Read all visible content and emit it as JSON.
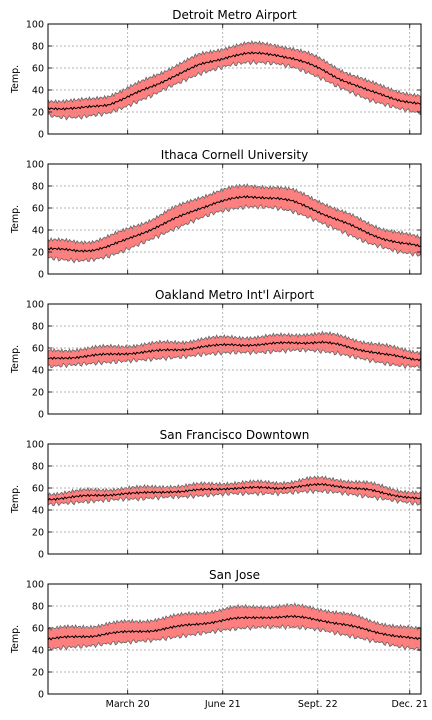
{
  "chart_data": [
    {
      "type": "area",
      "title": "Detroit Metro Airport",
      "ylabel": "Temp.",
      "ylim": [
        0,
        100
      ],
      "yticks": [
        0,
        20,
        40,
        60,
        80,
        100
      ],
      "x": [
        1,
        15,
        30,
        45,
        60,
        75,
        90,
        105,
        120,
        135,
        150,
        165,
        180,
        195,
        210,
        225,
        240,
        255,
        270,
        285,
        300,
        315,
        330,
        345,
        360,
        366
      ],
      "series": [
        {
          "role": "mean",
          "values": [
            24,
            23,
            23,
            25,
            27,
            32,
            38,
            44,
            51,
            57,
            63,
            67,
            71,
            73,
            73,
            72,
            69,
            64,
            58,
            51,
            45,
            39,
            35,
            31,
            28,
            27
          ]
        },
        {
          "role": "band-low",
          "values": [
            17,
            15,
            15,
            17,
            19,
            24,
            30,
            36,
            43,
            49,
            55,
            59,
            63,
            65,
            65,
            64,
            61,
            56,
            50,
            43,
            37,
            31,
            27,
            23,
            20,
            19
          ]
        },
        {
          "role": "band-high",
          "values": [
            31,
            30,
            30,
            32,
            35,
            40,
            46,
            53,
            60,
            66,
            72,
            76,
            80,
            82,
            82,
            81,
            78,
            73,
            67,
            60,
            53,
            47,
            43,
            39,
            35,
            34
          ]
        }
      ]
    },
    {
      "type": "area",
      "title": "Ithaca Cornell University",
      "ylabel": "Temp.",
      "ylim": [
        0,
        100
      ],
      "yticks": [
        0,
        20,
        40,
        60,
        80,
        100
      ],
      "x": [
        1,
        15,
        30,
        45,
        60,
        75,
        90,
        105,
        120,
        135,
        150,
        165,
        180,
        195,
        210,
        225,
        240,
        255,
        270,
        285,
        300,
        315,
        330,
        345,
        360,
        366
      ],
      "series": [
        {
          "role": "mean",
          "values": [
            23,
            22,
            21,
            22,
            25,
            30,
            36,
            42,
            48,
            54,
            60,
            65,
            68,
            70,
            70,
            69,
            66,
            61,
            55,
            49,
            43,
            37,
            32,
            28,
            26,
            25
          ]
        },
        {
          "role": "band-low",
          "values": [
            15,
            13,
            12,
            13,
            16,
            21,
            27,
            33,
            39,
            45,
            51,
            56,
            59,
            61,
            61,
            60,
            57,
            52,
            46,
            40,
            34,
            28,
            24,
            20,
            18,
            17
          ]
        },
        {
          "role": "band-high",
          "values": [
            31,
            30,
            29,
            30,
            34,
            39,
            45,
            51,
            58,
            64,
            70,
            75,
            78,
            80,
            80,
            79,
            76,
            71,
            65,
            58,
            52,
            46,
            41,
            37,
            34,
            33
          ]
        }
      ]
    },
    {
      "type": "area",
      "title": "Oakland Metro Int'l Airport",
      "ylabel": "Temp.",
      "ylim": [
        0,
        100
      ],
      "yticks": [
        0,
        20,
        40,
        60,
        80,
        100
      ],
      "x": [
        1,
        15,
        30,
        45,
        60,
        75,
        90,
        105,
        120,
        135,
        150,
        165,
        180,
        195,
        210,
        225,
        240,
        255,
        270,
        285,
        300,
        315,
        330,
        345,
        360,
        366
      ],
      "series": [
        {
          "role": "mean",
          "values": [
            50,
            51,
            52,
            53,
            54,
            55,
            56,
            57,
            58,
            59,
            61,
            62,
            63,
            63,
            63,
            64,
            65,
            65,
            65,
            63,
            60,
            57,
            54,
            52,
            50,
            50
          ]
        },
        {
          "role": "band-low",
          "values": [
            43,
            44,
            45,
            46,
            47,
            48,
            49,
            50,
            51,
            52,
            54,
            55,
            56,
            56,
            56,
            57,
            58,
            58,
            57,
            55,
            52,
            49,
            46,
            44,
            43,
            43
          ]
        },
        {
          "role": "band-high",
          "values": [
            57,
            58,
            59,
            60,
            61,
            62,
            63,
            64,
            65,
            66,
            68,
            69,
            70,
            70,
            70,
            71,
            72,
            73,
            73,
            71,
            68,
            65,
            62,
            59,
            57,
            57
          ]
        }
      ]
    },
    {
      "type": "area",
      "title": "San Francisco Downtown",
      "ylabel": "Temp.",
      "ylim": [
        0,
        100
      ],
      "yticks": [
        0,
        20,
        40,
        60,
        80,
        100
      ],
      "x": [
        1,
        15,
        30,
        45,
        60,
        75,
        90,
        105,
        120,
        135,
        150,
        165,
        180,
        195,
        210,
        225,
        240,
        255,
        270,
        285,
        300,
        315,
        330,
        345,
        360,
        366
      ],
      "series": [
        {
          "role": "mean",
          "values": [
            50,
            51,
            52,
            53,
            54,
            55,
            55,
            56,
            57,
            57,
            58,
            59,
            60,
            60,
            60,
            60,
            61,
            62,
            63,
            62,
            60,
            58,
            55,
            53,
            51,
            50
          ]
        },
        {
          "role": "band-low",
          "values": [
            45,
            46,
            47,
            48,
            49,
            50,
            50,
            51,
            52,
            52,
            53,
            54,
            55,
            55,
            55,
            55,
            56,
            57,
            57,
            56,
            54,
            52,
            50,
            48,
            46,
            45
          ]
        },
        {
          "role": "band-high",
          "values": [
            55,
            56,
            57,
            58,
            59,
            60,
            60,
            61,
            62,
            62,
            63,
            64,
            65,
            65,
            65,
            65,
            66,
            68,
            69,
            68,
            66,
            64,
            61,
            58,
            56,
            55
          ]
        }
      ]
    },
    {
      "type": "area",
      "title": "San Jose",
      "ylabel": "Temp.",
      "ylim": [
        0,
        100
      ],
      "yticks": [
        0,
        20,
        40,
        60,
        80,
        100
      ],
      "x": [
        1,
        15,
        30,
        45,
        60,
        75,
        90,
        105,
        120,
        135,
        150,
        165,
        180,
        195,
        210,
        225,
        240,
        255,
        270,
        285,
        300,
        315,
        330,
        345,
        360,
        366
      ],
      "series": [
        {
          "role": "mean",
          "values": [
            50,
            51,
            52,
            53,
            55,
            56,
            57,
            58,
            60,
            62,
            64,
            66,
            68,
            69,
            70,
            70,
            70,
            69,
            67,
            64,
            61,
            58,
            55,
            52,
            50,
            50
          ]
        },
        {
          "role": "band-low",
          "values": [
            41,
            42,
            43,
            44,
            46,
            47,
            48,
            49,
            51,
            53,
            55,
            57,
            59,
            60,
            61,
            61,
            61,
            60,
            58,
            55,
            52,
            49,
            46,
            43,
            41,
            41
          ]
        },
        {
          "role": "band-high",
          "values": [
            59,
            60,
            61,
            62,
            64,
            65,
            66,
            68,
            70,
            72,
            74,
            76,
            78,
            79,
            80,
            80,
            80,
            79,
            77,
            74,
            71,
            67,
            64,
            61,
            59,
            59
          ]
        }
      ]
    }
  ],
  "x_axis": {
    "range": [
      1,
      366
    ],
    "ticks": [
      {
        "day": 79,
        "label": "March 20"
      },
      {
        "day": 172,
        "label": "June 21"
      },
      {
        "day": 265,
        "label": "Sept. 22"
      },
      {
        "day": 355,
        "label": "Dec. 21"
      }
    ]
  },
  "colors": {
    "band_fill": "#ff7f7f",
    "band_edge": "#666666",
    "mean_line": "#000000",
    "grid": "#9a9a9a"
  }
}
